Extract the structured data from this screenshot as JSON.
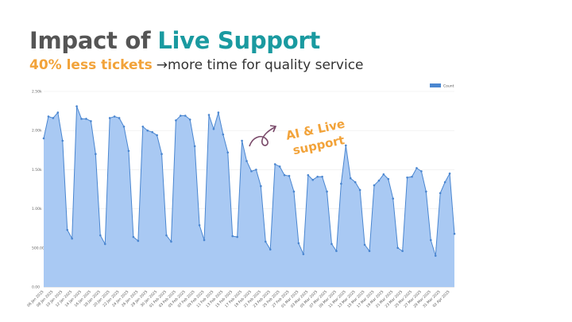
{
  "slide": {
    "title": [
      "Impact of",
      "Live Support"
    ],
    "subtitle": [
      "40% less tickets",
      "→more time for quality service"
    ]
  },
  "chart_data": {
    "type": "area",
    "annotation": "AI & Live support",
    "legend": "top-right",
    "grid": true,
    "categories": [
      "06 Jan 2025",
      null,
      "08 Jan 2025",
      null,
      "10 Jan 2025",
      null,
      "12 Jan 2025",
      null,
      "14 Jan 2025",
      null,
      "16 Jan 2025",
      null,
      "18 Jan 2025",
      null,
      "20 Jan 2025",
      null,
      "22 Jan 2025",
      null,
      "24 Jan 2025",
      null,
      "26 Jan 2025",
      null,
      "28 Jan 2025",
      null,
      "30 Jan 2025",
      null,
      "01 Feb 2025",
      null,
      "03 Feb 2025",
      null,
      "05 Feb 2025",
      null,
      "07 Feb 2025",
      null,
      "09 Feb 2025",
      null,
      "11 Feb 2025",
      null,
      "13 Feb 2025",
      null,
      "15 Feb 2025",
      null,
      "17 Feb 2025",
      null,
      "19 Feb 2025",
      null,
      "21 Feb 2025",
      null,
      "23 Feb 2025",
      null,
      "25 Feb 2025",
      null,
      "27 Feb 2025",
      null,
      "01 Mar 2025",
      null,
      "03 Mar 2025",
      null,
      "05 Mar 2025",
      null,
      "07 Mar 2025",
      null,
      "09 Mar 2025",
      null,
      "11 Mar 2025",
      null,
      "13 Mar 2025",
      null,
      "15 Mar 2025",
      null,
      "17 Mar 2025",
      null,
      "19 Mar 2025",
      null,
      "21 Mar 2025",
      null,
      "23 Mar 2025",
      null,
      "25 Mar 2025",
      null,
      "27 Mar 2025",
      null,
      "29 Mar 2025",
      null,
      "31 Mar 2025",
      null,
      "02 Apr 2025",
      null
    ],
    "series": [
      {
        "name": "Count",
        "color": "#4a86d0",
        "fill": "#a9c9f3",
        "values": [
          1900,
          2180,
          2160,
          2230,
          1870,
          730,
          620,
          2310,
          2150,
          2150,
          2120,
          1700,
          660,
          550,
          2160,
          2180,
          2160,
          2050,
          1740,
          640,
          590,
          2050,
          2000,
          1980,
          1940,
          1700,
          660,
          580,
          2130,
          2190,
          2190,
          2140,
          1800,
          790,
          600,
          2200,
          2020,
          2230,
          1950,
          1720,
          650,
          640,
          1870,
          1610,
          1480,
          1500,
          1290,
          580,
          480,
          1570,
          1540,
          1430,
          1420,
          1220,
          560,
          420,
          1430,
          1370,
          1410,
          1410,
          1220,
          550,
          460,
          1320,
          1810,
          1390,
          1340,
          1240,
          540,
          460,
          1300,
          1360,
          1440,
          1380,
          1130,
          500,
          460,
          1400,
          1410,
          1520,
          1480,
          1220,
          600,
          400,
          1200,
          1340,
          1450,
          680
        ]
      }
    ],
    "ylim": [
      0,
      2500
    ],
    "yticks": [
      {
        "value": 0,
        "label": "0.00"
      },
      {
        "value": 500,
        "label": "500.00"
      },
      {
        "value": 1000,
        "label": "1.00k"
      },
      {
        "value": 1500,
        "label": "1.50k"
      },
      {
        "value": 2000,
        "label": "2.00k"
      },
      {
        "value": 2500,
        "label": "2.50k"
      }
    ]
  }
}
